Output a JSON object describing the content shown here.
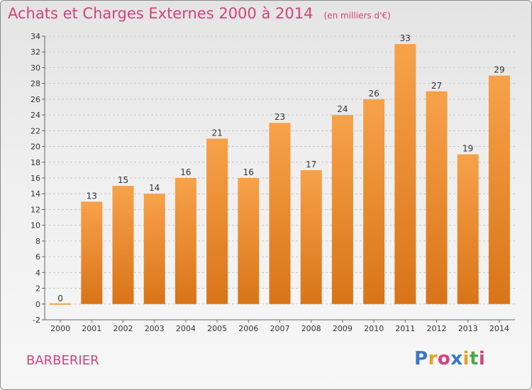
{
  "title": "Achats et Charges Externes 2000 à 2014",
  "subtitle": "(en milliers d'€)",
  "commune": "BARBERIER",
  "logo": {
    "text": "Proxiti",
    "colors": [
      "#3a76c4",
      "#e8a020",
      "#d64080",
      "#3a76c4",
      "#e8a020",
      "#49a84a",
      "#d64080"
    ]
  },
  "colors": {
    "bar_light": "#f7a24a",
    "bar_dark": "#d97418",
    "text_accent": "#d2427a",
    "axis": "#666666"
  },
  "chart_data": {
    "type": "bar",
    "categories": [
      "2000",
      "2001",
      "2002",
      "2003",
      "2004",
      "2005",
      "2006",
      "2007",
      "2008",
      "2009",
      "2010",
      "2011",
      "2012",
      "2013",
      "2014"
    ],
    "values": [
      0,
      13,
      15,
      14,
      16,
      21,
      16,
      23,
      17,
      24,
      26,
      33,
      27,
      19,
      29
    ],
    "yticks": [
      -2,
      0,
      2,
      4,
      6,
      8,
      10,
      12,
      14,
      16,
      18,
      20,
      22,
      24,
      26,
      28,
      30,
      32,
      34
    ],
    "ylim": [
      -2,
      34
    ],
    "grid": "horizontal dashed",
    "data_labels": true
  }
}
